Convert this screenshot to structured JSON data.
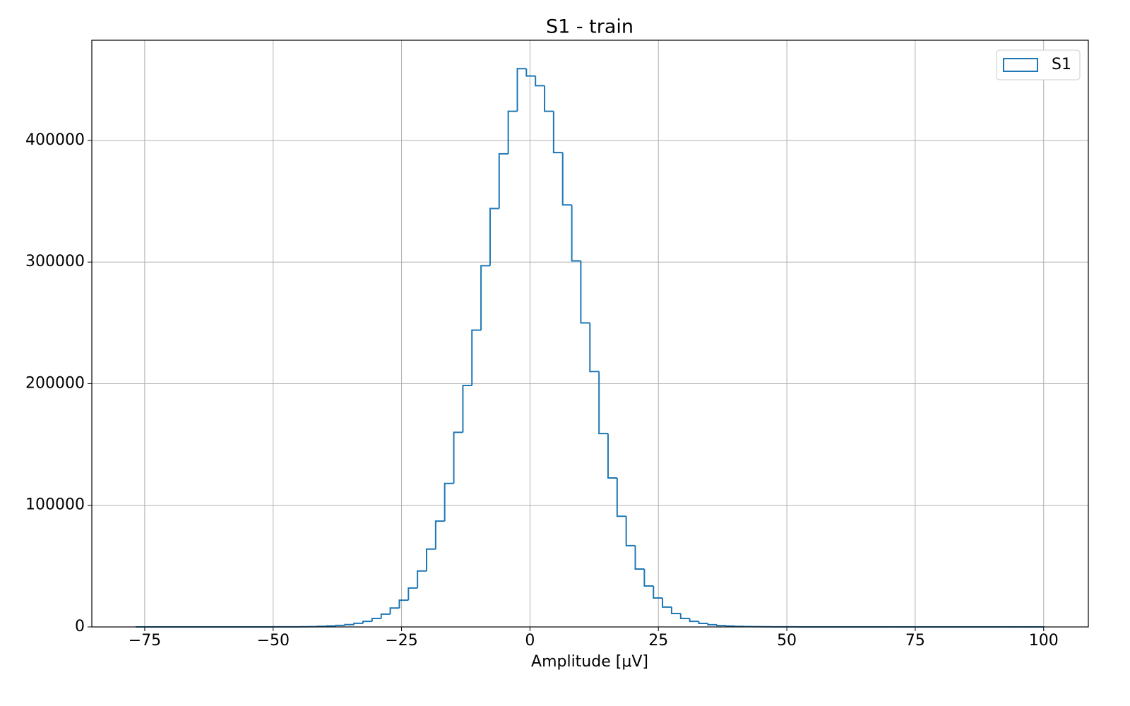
{
  "chart_data": {
    "type": "histogram",
    "title": "S1 - train",
    "x_label": "Amplitude [μV]",
    "bins": [
      -76.66,
      -74.89,
      -73.13,
      -71.36,
      -69.59,
      -67.83,
      -66.06,
      -64.29,
      -62.53,
      -60.76,
      -58.99,
      -57.23,
      -55.46,
      -53.69,
      -51.93,
      -50.16,
      -48.39,
      -46.63,
      -44.86,
      -43.09,
      -41.33,
      -39.56,
      -37.79,
      -36.03,
      -34.26,
      -32.5,
      -30.73,
      -28.96,
      -27.2,
      -25.43,
      -23.66,
      -21.9,
      -20.13,
      -18.36,
      -16.6,
      -14.83,
      -13.06,
      -11.3,
      -9.53,
      -7.76,
      -6.0,
      -4.23,
      -2.46,
      -0.7,
      1.07,
      2.84,
      4.6,
      6.37,
      8.14,
      9.9,
      11.67,
      13.44,
      15.2,
      16.97,
      18.74,
      20.5,
      22.27,
      24.04,
      25.8,
      27.57,
      29.34,
      31.1,
      32.87,
      34.63,
      36.4,
      38.17,
      39.93,
      41.7,
      43.47,
      45.23,
      47.0,
      48.77,
      50.53,
      52.3,
      54.07,
      55.83,
      57.6,
      59.37,
      61.13,
      62.9,
      64.67,
      66.43,
      68.2,
      69.97,
      71.73,
      73.5,
      75.27,
      77.03,
      78.8,
      80.57,
      82.33,
      84.1,
      85.87,
      87.63,
      89.4,
      91.17,
      92.93,
      94.7,
      96.46,
      98.23,
      100.0
    ],
    "series": [
      {
        "name": "S1",
        "color": "#1f77b4",
        "values": [
          2,
          1,
          1,
          2,
          3,
          2,
          4,
          5,
          6,
          8,
          10,
          14,
          18,
          25,
          35,
          50,
          70,
          100,
          150,
          220,
          500,
          800,
          1200,
          1900,
          3000,
          4600,
          7000,
          10500,
          15500,
          22000,
          32000,
          46000,
          64000,
          87000,
          118000,
          160000,
          198500,
          244000,
          297000,
          344000,
          389000,
          424000,
          459000,
          453000,
          445000,
          424000,
          390000,
          347000,
          301000,
          250000,
          210000,
          159000,
          122500,
          91000,
          66800,
          47600,
          33700,
          23800,
          16300,
          11000,
          7000,
          4600,
          2900,
          1800,
          1100,
          700,
          450,
          300,
          200,
          140,
          100,
          70,
          50,
          35,
          25,
          18,
          13,
          10,
          8,
          6,
          5,
          4,
          3,
          3,
          2,
          2,
          2,
          1,
          1,
          1,
          1,
          1,
          1,
          1,
          1,
          1,
          1,
          1,
          1,
          1
        ]
      }
    ],
    "xlim": [
      -85.3,
      108.7
    ],
    "ylim": [
      0,
      482400
    ],
    "xticks": [
      {
        "value": -75,
        "label": "−75"
      },
      {
        "value": -50,
        "label": "−50"
      },
      {
        "value": -25,
        "label": "−25"
      },
      0,
      25,
      50,
      75,
      100
    ],
    "yticks": [
      0,
      100000,
      200000,
      300000,
      400000
    ],
    "grid": true,
    "legend": "upper right"
  }
}
